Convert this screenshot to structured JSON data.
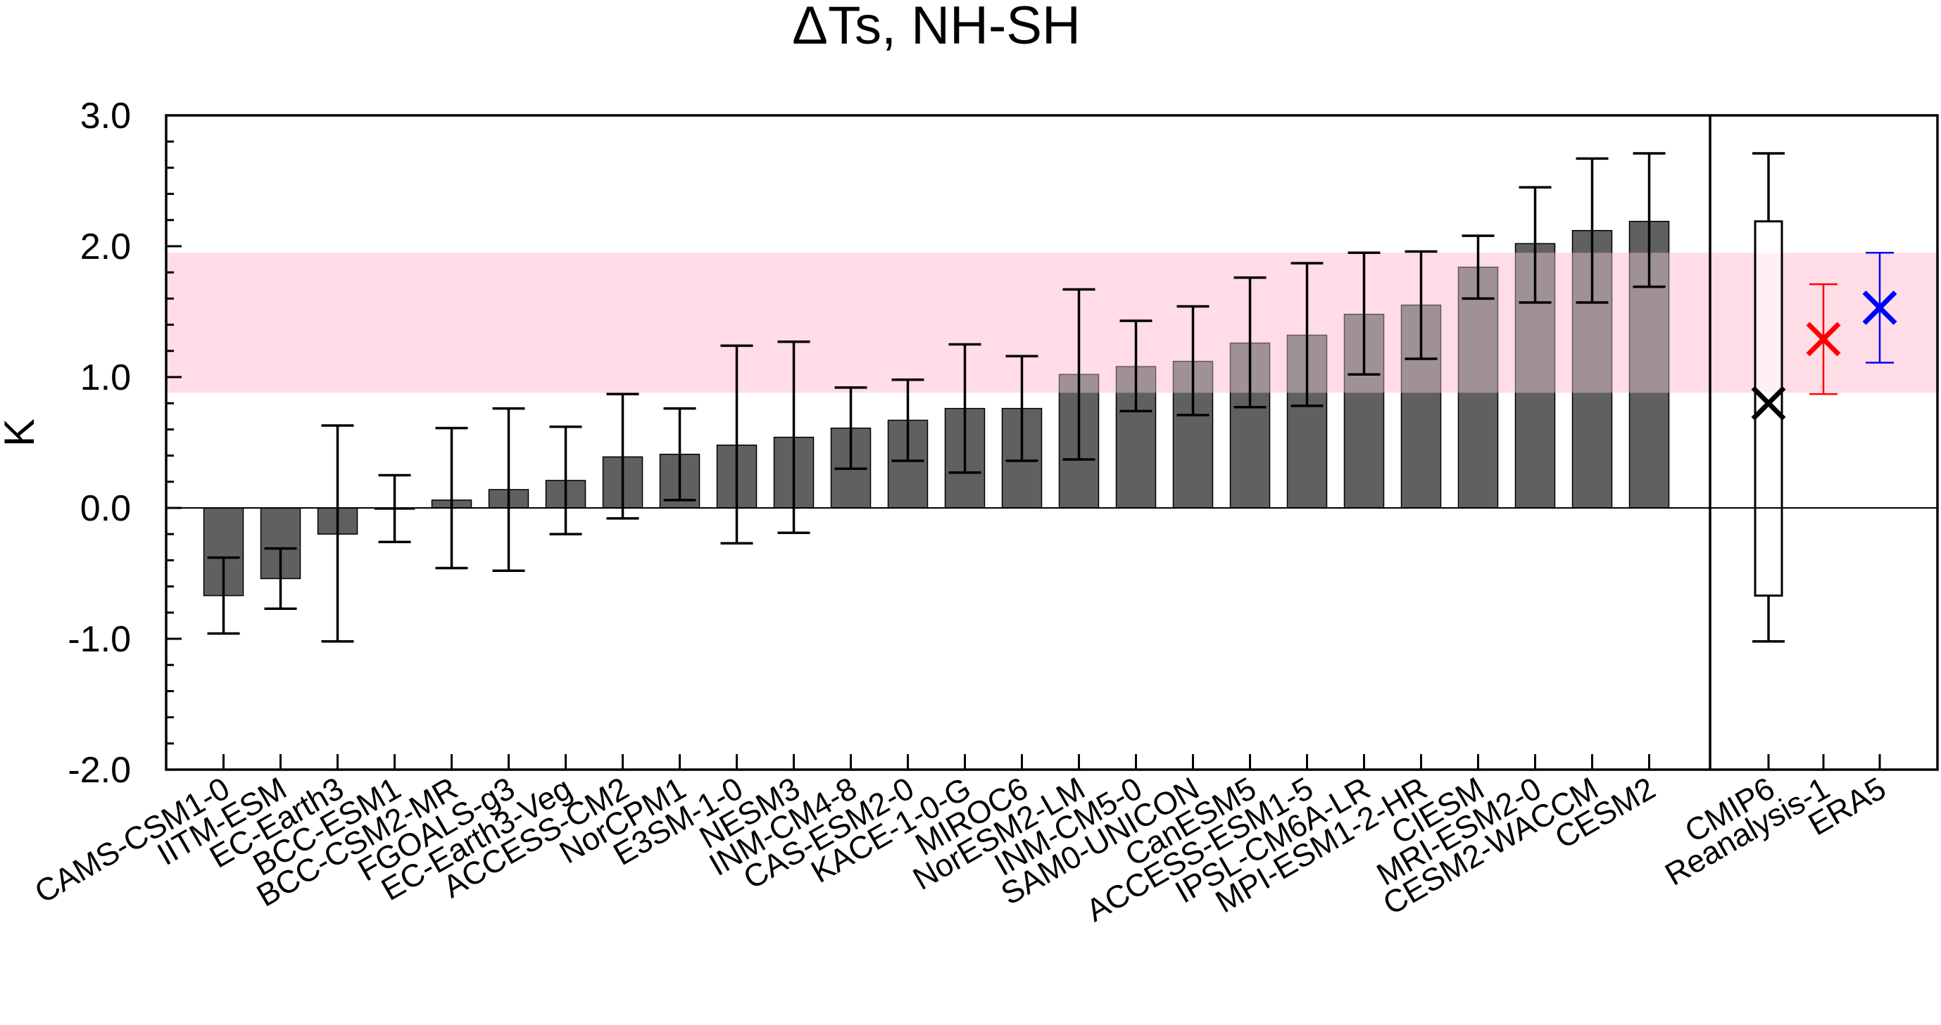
{
  "chart_data": {
    "type": "bar",
    "title": "ΔTs, NH-SH",
    "ylabel": "K",
    "xlabel": "",
    "ylim": [
      -2.0,
      3.0
    ],
    "yticks": [
      "3.0",
      "2.0",
      "1.0",
      "0.0",
      "-1.0",
      "-2.0"
    ],
    "reference_band": {
      "low": 0.88,
      "high": 1.95,
      "color": "#ffdde6"
    },
    "zero_line": true,
    "bar_color": "#606060",
    "categories": [
      "CAMS-CSM1-0",
      "IITM-ESM",
      "EC-Earth3",
      "BCC-ESM1",
      "BCC-CSM2-MR",
      "FGOALS-g3",
      "EC-Earth3-Veg",
      "ACCESS-CM2",
      "NorCPM1",
      "E3SM-1-0",
      "NESM3",
      "INM-CM4-8",
      "CAS-ESM2-0",
      "KACE-1-0-G",
      "MIROC6",
      "NorESM2-LM",
      "INM-CM5-0",
      "SAM0-UNICON",
      "CanESM5",
      "ACCESS-ESM1-5",
      "IPSL-CM6A-LR",
      "MPI-ESM1-2-HR",
      "CIESM",
      "MRI-ESM2-0",
      "CESM2-WACCM",
      "CESM2"
    ],
    "values": [
      -0.67,
      -0.54,
      -0.2,
      -0.01,
      0.06,
      0.14,
      0.21,
      0.39,
      0.41,
      0.48,
      0.54,
      0.61,
      0.67,
      0.76,
      0.76,
      1.02,
      1.08,
      1.12,
      1.26,
      1.32,
      1.48,
      1.55,
      1.84,
      2.02,
      2.12,
      2.19
    ],
    "error_low": [
      -0.96,
      -0.77,
      -1.02,
      -0.26,
      -0.46,
      -0.48,
      -0.2,
      -0.08,
      0.06,
      -0.27,
      -0.19,
      0.3,
      0.36,
      0.27,
      0.36,
      0.37,
      0.74,
      0.71,
      0.77,
      0.78,
      1.02,
      1.14,
      1.6,
      1.57,
      1.57,
      1.69
    ],
    "error_high": [
      -0.38,
      -0.31,
      0.63,
      0.25,
      0.61,
      0.76,
      0.62,
      0.87,
      0.76,
      1.24,
      1.27,
      0.92,
      0.98,
      1.25,
      1.16,
      1.67,
      1.43,
      1.54,
      1.76,
      1.87,
      1.95,
      1.96,
      2.08,
      2.45,
      2.67,
      2.71
    ],
    "summary": {
      "categories": [
        "CMIP6",
        "Reanalysis-1",
        "ERA5"
      ],
      "cmip6": {
        "box_low": -0.67,
        "box_high": 2.19,
        "whisker_low": -1.02,
        "whisker_high": 2.71,
        "mean": 0.8,
        "color": "#000000"
      },
      "reanalysis1": {
        "value": 1.29,
        "error_low": 0.87,
        "error_high": 1.71,
        "color": "#ff0000"
      },
      "era5": {
        "value": 1.53,
        "error_low": 1.11,
        "error_high": 1.95,
        "color": "#0000ff"
      }
    }
  }
}
